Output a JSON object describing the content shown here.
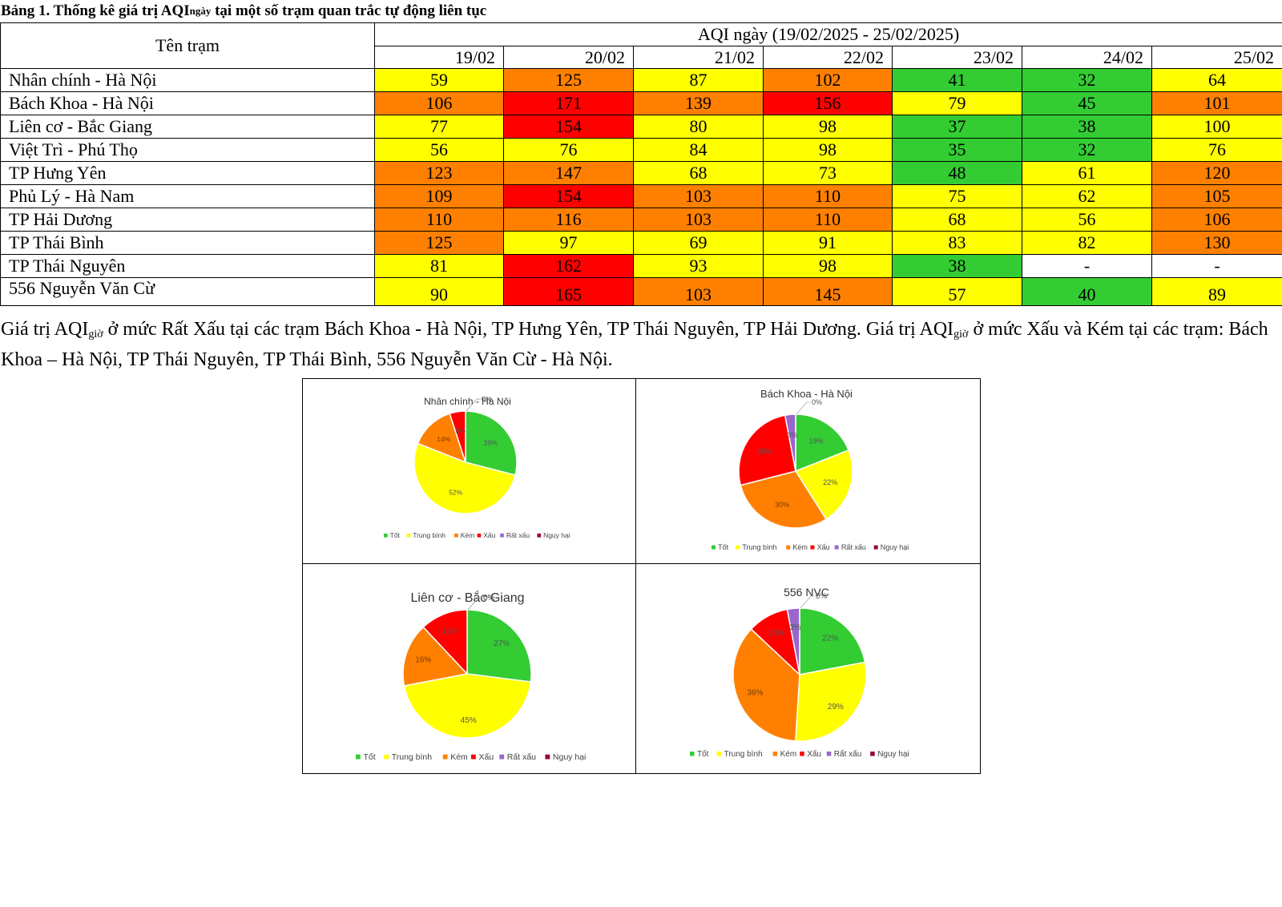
{
  "caption": {
    "prefix": "Bảng 1. Thống kê giá trị AQI",
    "sub": "ngày",
    "suffix": " tại một số trạm quan trắc tự động liên tục"
  },
  "table": {
    "station_header": "Tên trạm",
    "group_header": "AQI ngày (19/02/2025 - 25/02/2025)",
    "dates": [
      "19/02",
      "20/02",
      "21/02",
      "22/02",
      "23/02",
      "24/02",
      "25/02"
    ],
    "rows": [
      {
        "station": "Nhân chính - Hà Nội",
        "values": [
          "59",
          "125",
          "87",
          "102",
          "41",
          "32",
          "64"
        ]
      },
      {
        "station": "Bách Khoa - Hà Nội",
        "values": [
          "106",
          "171",
          "139",
          "156",
          "79",
          "45",
          "101"
        ]
      },
      {
        "station": "Liên cơ - Bắc Giang",
        "values": [
          "77",
          "154",
          "80",
          "98",
          "37",
          "38",
          "100"
        ]
      },
      {
        "station": "Việt Trì - Phú Thọ",
        "values": [
          "56",
          "76",
          "84",
          "98",
          "35",
          "32",
          "76"
        ]
      },
      {
        "station": "TP Hưng Yên",
        "values": [
          "123",
          "147",
          "68",
          "73",
          "48",
          "61",
          "120"
        ]
      },
      {
        "station": "Phủ Lý - Hà Nam",
        "values": [
          "109",
          "154",
          "103",
          "110",
          "75",
          "62",
          "105"
        ]
      },
      {
        "station": "TP Hải Dương",
        "values": [
          "110",
          "116",
          "103",
          "110",
          "68",
          "56",
          "106"
        ]
      },
      {
        "station": "TP Thái Bình",
        "values": [
          "125",
          "97",
          "69",
          "91",
          "83",
          "82",
          "130"
        ]
      },
      {
        "station": "TP Thái Nguyên",
        "values": [
          "81",
          "162",
          "93",
          "98",
          "38",
          "-",
          "-"
        ]
      },
      {
        "station": "556 Nguyễn Văn Cừ",
        "values": [
          "90",
          "165",
          "103",
          "145",
          "57",
          "40",
          "89"
        ]
      }
    ],
    "level_colors": {
      "good": "#33cc33",
      "moderate": "#ffff00",
      "poor": "#ff8000",
      "bad": "#ff0000",
      "none": "#ffffff"
    }
  },
  "paragraph": {
    "p1": "Giá trị AQI",
    "sub1": "giờ",
    "p2": " ở mức Rất Xấu tại các trạm Bách Khoa - Hà Nội, TP Hưng Yên, TP Thái Nguyên, TP Hải Dương. Giá trị AQI",
    "sub2": "giờ",
    "p3": " ở mức Xấu và Kém tại các trạm: Bách Khoa – Hà Nội, TP Thái Nguyên, TP Thái Bình, 556 Nguyễn Văn Cừ - Hà Nội."
  },
  "legend_labels": [
    "Tốt",
    "Trung bình",
    "Kém",
    "Xấu",
    "Rất xấu",
    "Nguy hại"
  ],
  "legend_colors": [
    "#33cc33",
    "#ffff00",
    "#ff8000",
    "#ff0000",
    "#9966cc",
    "#990033"
  ],
  "chart_data": [
    {
      "type": "pie",
      "title": "Nhân chính - Hà Nội",
      "labels": [
        "Tốt",
        "Trung bình",
        "Kém",
        "Xấu",
        "Rất xấu",
        "Nguy hại"
      ],
      "values": [
        29,
        52,
        14,
        5,
        0,
        0
      ],
      "data_labels": [
        "29%",
        "52%",
        "14%",
        "5%",
        "0%",
        "0%"
      ]
    },
    {
      "type": "pie",
      "title": "Bách Khoa - Hà Nội",
      "labels": [
        "Tốt",
        "Trung bình",
        "Kém",
        "Xấu",
        "Rất xấu",
        "Nguy hại"
      ],
      "values": [
        19,
        22,
        30,
        26,
        3,
        0
      ],
      "data_labels": [
        "19%",
        "22%",
        "30%",
        "26%",
        "3%",
        "0%"
      ]
    },
    {
      "type": "pie",
      "title": "Liên cơ - Bắc Giang",
      "labels": [
        "Tốt",
        "Trung bình",
        "Kém",
        "Xấu",
        "Rất xấu",
        "Nguy hại"
      ],
      "values": [
        27,
        45,
        16,
        12,
        0,
        0
      ],
      "data_labels": [
        "27%",
        "45%",
        "16%",
        "12%",
        "0%",
        "0%"
      ]
    },
    {
      "type": "pie",
      "title": "556 NVC",
      "labels": [
        "Tốt",
        "Trung bình",
        "Kém",
        "Xấu",
        "Rất xấu",
        "Nguy hại"
      ],
      "values": [
        22,
        29,
        36,
        10,
        3,
        0
      ],
      "data_labels": [
        "22%",
        "29%",
        "36%",
        "10%",
        "3%",
        "0%"
      ]
    }
  ]
}
